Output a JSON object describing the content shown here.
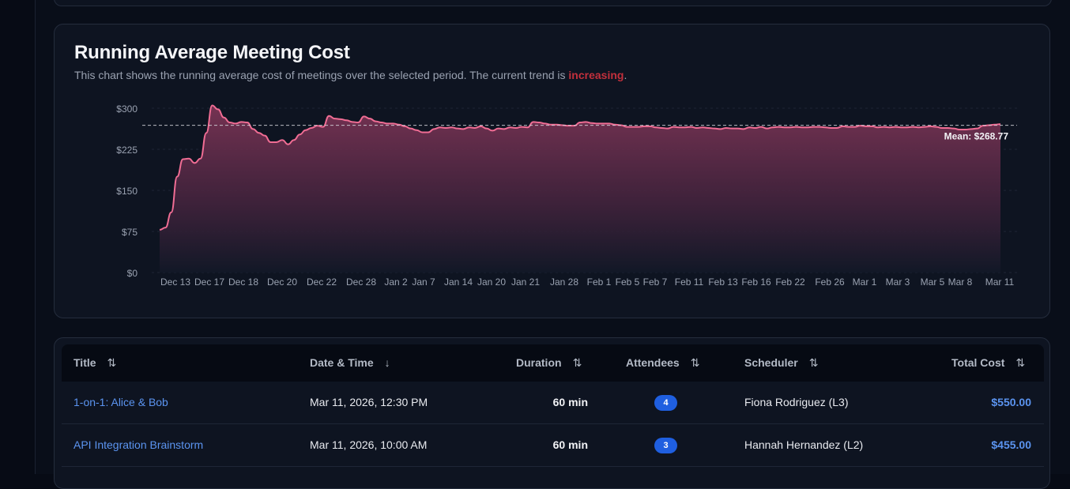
{
  "chart": {
    "title": "Running Average Meeting Cost",
    "subtitle_prefix": "This chart shows the running average cost of meetings over the selected period. The current trend is ",
    "trend_word": "increasing",
    "subtitle_suffix": ".",
    "mean_label": "Mean: $268.77"
  },
  "chart_data": {
    "type": "area",
    "title": "Running Average Meeting Cost",
    "xlabel": "",
    "ylabel": "",
    "ylim": [
      0,
      300
    ],
    "y_ticks": [
      0,
      75,
      150,
      225,
      300
    ],
    "y_tick_labels": [
      "$0",
      "$75",
      "$150",
      "$225",
      "$300"
    ],
    "x_tick_labels": [
      "Dec 13",
      "Dec 17",
      "Dec 18",
      "Dec 20",
      "Dec 22",
      "Dec 28",
      "Jan 2",
      "Jan 7",
      "Jan 14",
      "Jan 20",
      "Jan 21",
      "Jan 28",
      "Feb 1",
      "Feb 5",
      "Feb 7",
      "Feb 11",
      "Feb 13",
      "Feb 16",
      "Feb 22",
      "Feb 26",
      "Mar 1",
      "Mar 3",
      "Mar 5",
      "Mar 8",
      "Mar 11"
    ],
    "mean": 268.77,
    "line_color": "#f06d94",
    "values": [
      78,
      82,
      110,
      175,
      207,
      208,
      200,
      208,
      255,
      305,
      298,
      283,
      274,
      272,
      275,
      274,
      262,
      255,
      250,
      238,
      238,
      242,
      234,
      242,
      252,
      260,
      264,
      268,
      266,
      286,
      281,
      280,
      278,
      275,
      274,
      285,
      281,
      276,
      274,
      272,
      272,
      270,
      267,
      263,
      260,
      256,
      256,
      262,
      265,
      264,
      265,
      263,
      262,
      265,
      264,
      267,
      263,
      259,
      263,
      262,
      265,
      264,
      266,
      265,
      275,
      274,
      272,
      270,
      270,
      269,
      268,
      268,
      274,
      275,
      273,
      272,
      272,
      272,
      270,
      269,
      266,
      266,
      266,
      267,
      267,
      265,
      264,
      263,
      266,
      265,
      265,
      266,
      264,
      265,
      264,
      263,
      262,
      264,
      263,
      263,
      262,
      265,
      264,
      266,
      263,
      265,
      266,
      265,
      265,
      266,
      265,
      265,
      266,
      266,
      265,
      264,
      264,
      267,
      266,
      266,
      268,
      267,
      267,
      265,
      266,
      265,
      266,
      265,
      265,
      266,
      265,
      266,
      267,
      266,
      264,
      264,
      263,
      261,
      261,
      262,
      263,
      268,
      269,
      270,
      271
    ]
  },
  "table": {
    "headers": {
      "title": "Title",
      "datetime": "Date & Time",
      "duration": "Duration",
      "attendees": "Attendees",
      "scheduler": "Scheduler",
      "total_cost": "Total Cost"
    },
    "rows": [
      {
        "title": "1-on-1: Alice & Bob",
        "datetime": "Mar 11, 2026, 12:30 PM",
        "duration": "60 min",
        "attendees": "4",
        "scheduler": "Fiona Rodriguez (L3)",
        "total_cost": "$550.00"
      },
      {
        "title": "API Integration Brainstorm",
        "datetime": "Mar 11, 2026, 10:00 AM",
        "duration": "60 min",
        "attendees": "3",
        "scheduler": "Hannah Hernandez (L2)",
        "total_cost": "$455.00"
      }
    ]
  },
  "icons": {
    "sort_both": "⇅",
    "sort_down": "↓"
  }
}
